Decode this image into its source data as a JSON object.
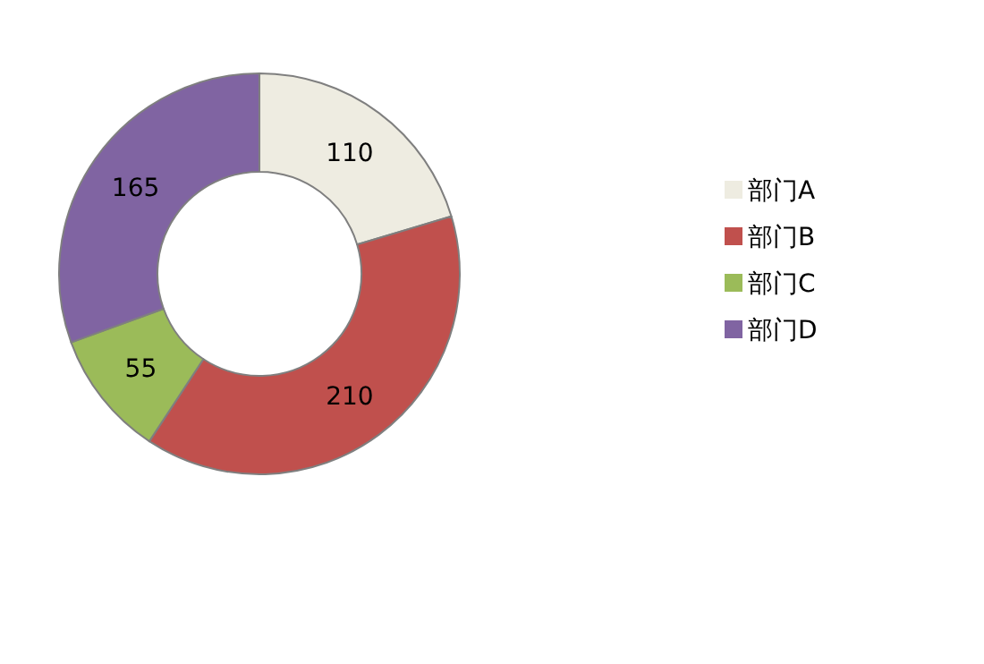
{
  "chart_data": {
    "type": "donut",
    "categories": [
      "部门A",
      "部门B",
      "部门C",
      "部门D"
    ],
    "values": [
      110,
      210,
      55,
      165
    ],
    "colors": [
      "#eeece1",
      "#c0504d",
      "#9bbb59",
      "#8064a2"
    ],
    "data_labels": true,
    "legend": "right"
  }
}
